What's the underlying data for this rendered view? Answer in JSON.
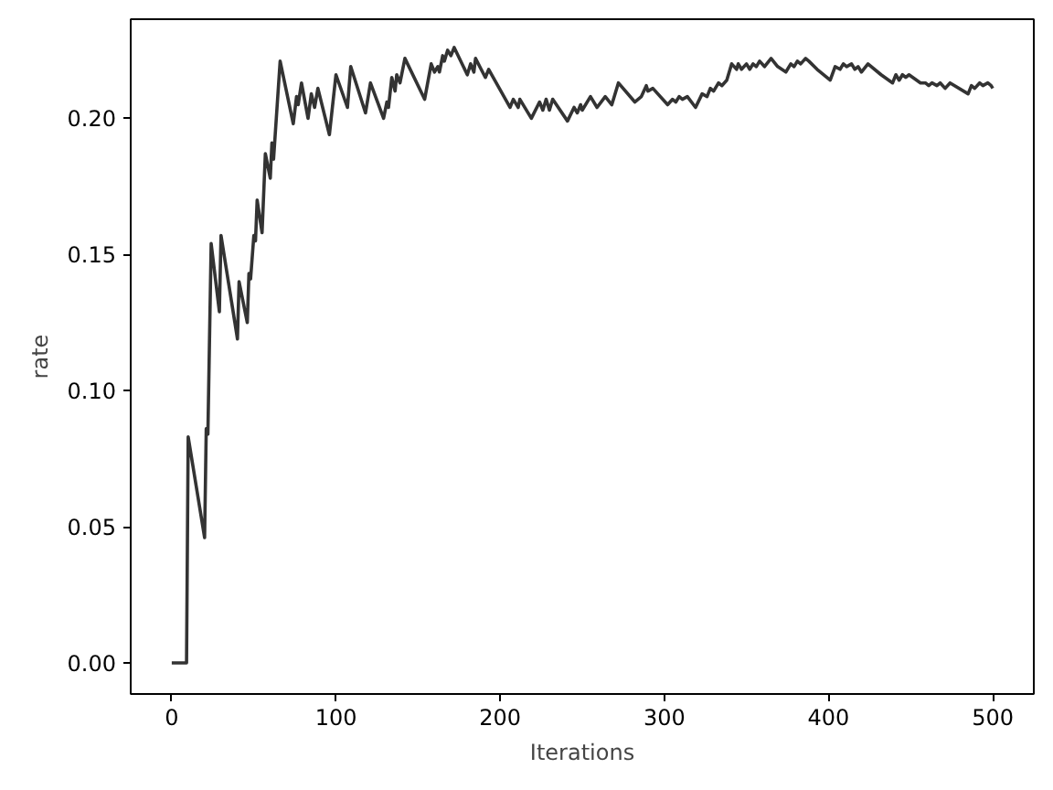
{
  "chart_data": {
    "type": "line",
    "xlabel": "Iterations",
    "ylabel": "rate",
    "x": [
      0,
      9,
      10,
      20,
      21,
      22,
      24,
      29,
      30,
      40,
      41,
      46,
      47,
      48,
      50,
      51,
      52,
      55,
      57,
      60,
      61,
      62,
      66,
      74,
      76,
      77,
      79,
      83,
      85,
      87,
      89,
      96,
      100,
      107,
      109,
      118,
      121,
      129,
      131,
      132,
      134,
      136,
      137,
      139,
      142,
      154,
      158,
      160,
      162,
      163,
      165,
      166,
      168,
      170,
      172,
      180,
      182,
      184,
      185,
      191,
      193,
      206,
      208,
      211,
      212,
      219,
      224,
      226,
      228,
      230,
      232,
      241,
      245,
      247,
      249,
      250,
      255,
      259,
      264,
      268,
      272,
      282,
      286,
      289,
      290,
      293,
      302,
      305,
      307,
      309,
      311,
      314,
      319,
      323,
      326,
      328,
      330,
      333,
      335,
      338,
      341,
      344,
      345,
      347,
      350,
      352,
      354,
      356,
      358,
      361,
      365,
      369,
      374,
      377,
      379,
      381,
      383,
      386,
      388,
      393,
      401,
      404,
      407,
      409,
      411,
      414,
      416,
      418,
      420,
      424,
      432,
      439,
      441,
      443,
      445,
      447,
      449,
      456,
      459,
      461,
      463,
      466,
      468,
      471,
      474,
      485,
      487,
      489,
      492,
      494,
      497,
      499,
      500
    ],
    "series": [
      {
        "color": "#333333",
        "values": [
          0,
          0,
          0.083,
          0.046,
          0.086,
          0.084,
          0.154,
          0.129,
          0.157,
          0.119,
          0.14,
          0.125,
          0.143,
          0.141,
          0.157,
          0.155,
          0.17,
          0.158,
          0.187,
          0.178,
          0.191,
          0.185,
          0.221,
          0.198,
          0.208,
          0.205,
          0.213,
          0.2,
          0.209,
          0.204,
          0.211,
          0.194,
          0.216,
          0.204,
          0.219,
          0.202,
          0.213,
          0.2,
          0.206,
          0.204,
          0.215,
          0.21,
          0.216,
          0.213,
          0.222,
          0.207,
          0.22,
          0.217,
          0.219,
          0.217,
          0.223,
          0.221,
          0.225,
          0.223,
          0.226,
          0.216,
          0.22,
          0.217,
          0.222,
          0.215,
          0.218,
          0.204,
          0.207,
          0.204,
          0.207,
          0.2,
          0.206,
          0.203,
          0.207,
          0.203,
          0.207,
          0.199,
          0.204,
          0.202,
          0.205,
          0.203,
          0.208,
          0.204,
          0.208,
          0.205,
          0.213,
          0.206,
          0.208,
          0.212,
          0.21,
          0.211,
          0.205,
          0.207,
          0.206,
          0.208,
          0.207,
          0.208,
          0.204,
          0.209,
          0.208,
          0.211,
          0.21,
          0.213,
          0.212,
          0.214,
          0.22,
          0.218,
          0.22,
          0.218,
          0.22,
          0.218,
          0.22,
          0.219,
          0.221,
          0.219,
          0.222,
          0.219,
          0.217,
          0.22,
          0.219,
          0.221,
          0.22,
          0.222,
          0.221,
          0.218,
          0.214,
          0.219,
          0.218,
          0.22,
          0.219,
          0.22,
          0.218,
          0.219,
          0.217,
          0.22,
          0.216,
          0.213,
          0.216,
          0.214,
          0.216,
          0.215,
          0.216,
          0.213,
          0.213,
          0.212,
          0.213,
          0.212,
          0.213,
          0.211,
          0.213,
          0.209,
          0.212,
          0.211,
          0.213,
          0.212,
          0.213,
          0.212,
          0.211
        ]
      }
    ],
    "xlim": [
      -25,
      525
    ],
    "ylim": [
      -0.0114,
      0.2364
    ],
    "xticks": [
      0,
      100,
      200,
      300,
      400,
      500
    ],
    "yticks": [
      {
        "value": 0,
        "label": "0.00"
      },
      {
        "value": 0.05,
        "label": "0.05"
      },
      {
        "value": 0.1,
        "label": "0.10"
      },
      {
        "value": 0.15,
        "label": "0.15"
      },
      {
        "value": 0.2,
        "label": "0.20"
      }
    ],
    "grid": false,
    "line_style": "solid"
  }
}
